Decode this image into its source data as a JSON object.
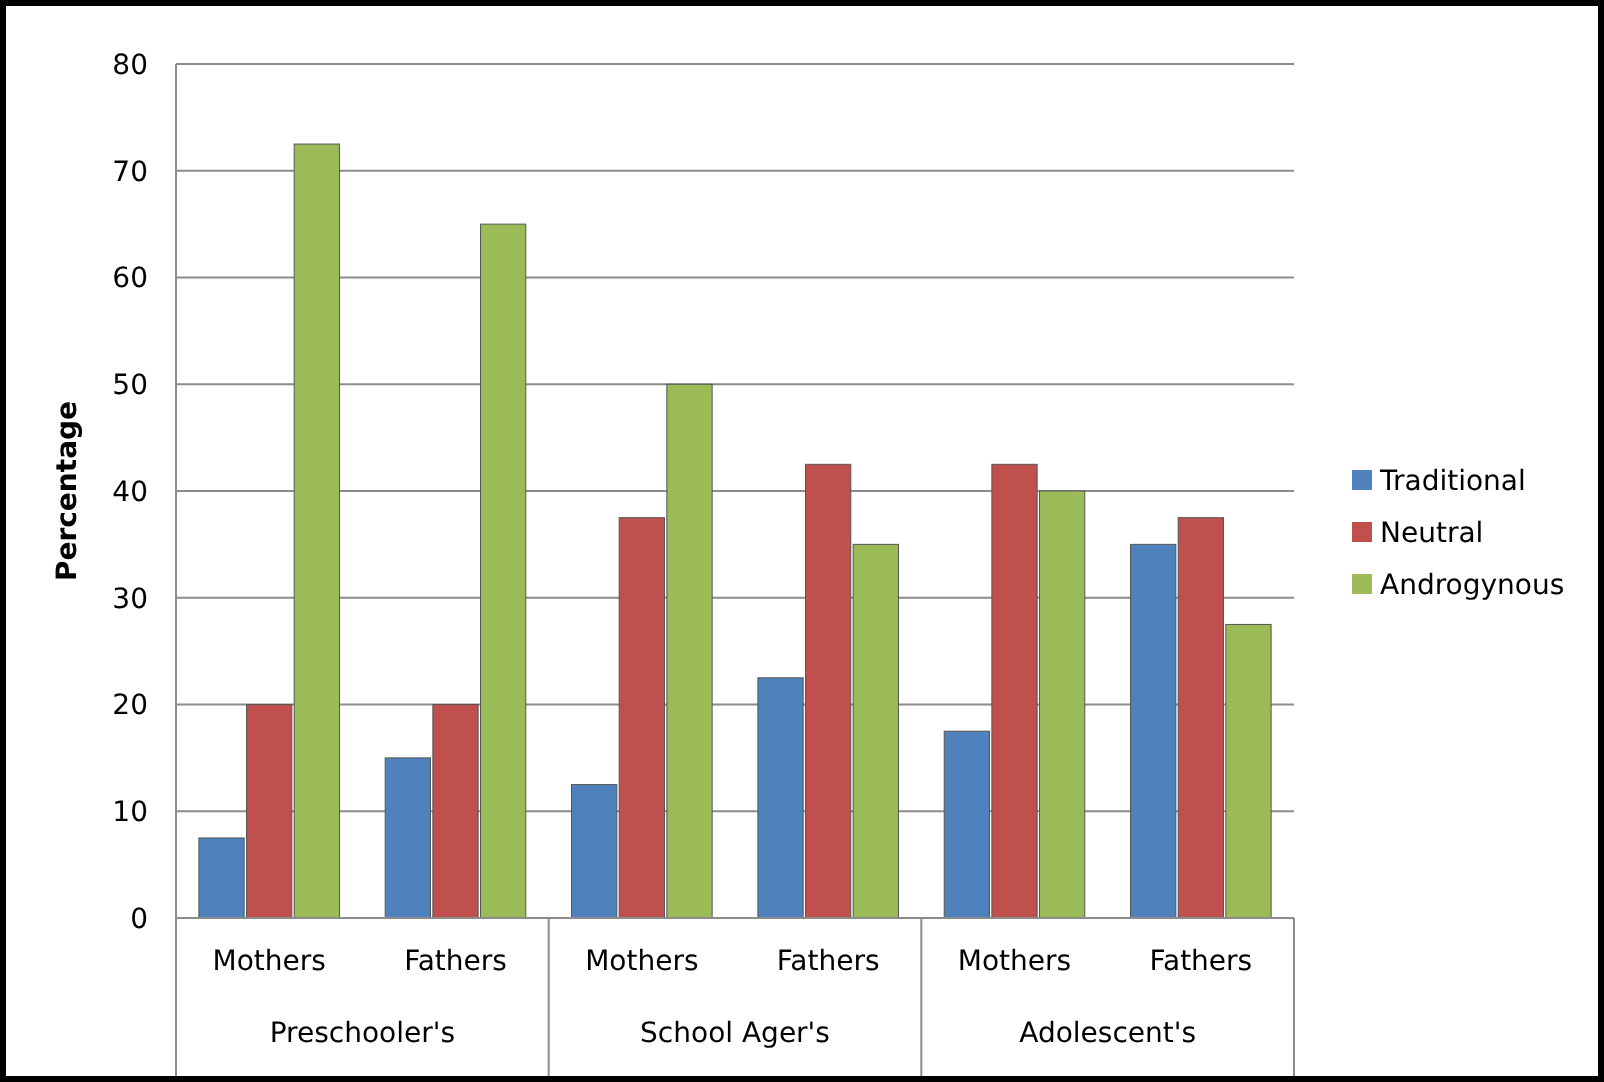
{
  "chart_data": {
    "type": "bar",
    "ylabel": "Percentage",
    "categories": [
      "Mothers",
      "Fathers",
      "Mothers",
      "Fathers",
      "Mothers",
      "Fathers"
    ],
    "annotations": [
      "Preschooler's",
      "School Ager's",
      "Adolescent's"
    ],
    "series": [
      {
        "name": "Traditional",
        "color": "#4f81bd",
        "values": [
          7.5,
          15,
          12.5,
          22.5,
          17.5,
          35
        ]
      },
      {
        "name": "Neutral",
        "color": "#c0504d",
        "values": [
          20,
          20,
          37.5,
          42.5,
          42.5,
          37.5
        ]
      },
      {
        "name": "Androgynous",
        "color": "#9bbb59",
        "values": [
          72.5,
          65,
          50,
          35,
          40,
          27.5
        ]
      }
    ],
    "ylim": [
      0,
      80
    ],
    "yticks": [
      0,
      10,
      20,
      30,
      40,
      50,
      60,
      70,
      80
    ],
    "grid": "y",
    "legend": "right"
  }
}
